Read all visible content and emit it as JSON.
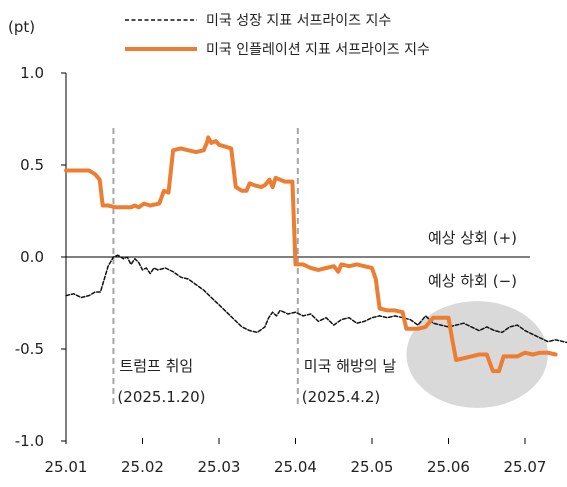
{
  "colors": {
    "growth": "#111111",
    "inflation": "#ED7D31",
    "axis": "#000000",
    "event_line": "#A6A6A6",
    "highlight_fill": "#D9D9D9"
  },
  "chart_data": {
    "type": "line",
    "y_unit": "(pt)",
    "ylim": [
      -1.0,
      1.0
    ],
    "y_ticks": [
      "1.0",
      "0.5",
      "0.0",
      "-0.5",
      "-1.0"
    ],
    "x_ticks": [
      "25.01",
      "25.02",
      "25.03",
      "25.04",
      "25.05",
      "25.06",
      "25.07"
    ],
    "legend_position": "top-right",
    "grid": false,
    "series": [
      {
        "name": "미국 성장 지표 서프라이즈 지수",
        "style": "dashed",
        "color": "#111111",
        "points": [
          [
            0.0,
            -0.21
          ],
          [
            0.1,
            -0.2
          ],
          [
            0.2,
            -0.22
          ],
          [
            0.3,
            -0.21
          ],
          [
            0.38,
            -0.19
          ],
          [
            0.45,
            -0.19
          ],
          [
            0.5,
            -0.12
          ],
          [
            0.55,
            -0.05
          ],
          [
            0.62,
            0.0
          ],
          [
            0.68,
            0.01
          ],
          [
            0.75,
            -0.01
          ],
          [
            0.8,
            0.0
          ],
          [
            0.85,
            -0.04
          ],
          [
            0.9,
            -0.01
          ],
          [
            0.95,
            -0.03
          ],
          [
            1.0,
            -0.07
          ],
          [
            1.05,
            -0.06
          ],
          [
            1.1,
            -0.09
          ],
          [
            1.15,
            -0.06
          ],
          [
            1.2,
            -0.07
          ],
          [
            1.3,
            -0.06
          ],
          [
            1.4,
            -0.08
          ],
          [
            1.5,
            -0.11
          ],
          [
            1.6,
            -0.12
          ],
          [
            1.7,
            -0.15
          ],
          [
            1.8,
            -0.18
          ],
          [
            1.9,
            -0.22
          ],
          [
            2.0,
            -0.26
          ],
          [
            2.1,
            -0.3
          ],
          [
            2.2,
            -0.34
          ],
          [
            2.3,
            -0.38
          ],
          [
            2.4,
            -0.4
          ],
          [
            2.5,
            -0.41
          ],
          [
            2.6,
            -0.38
          ],
          [
            2.65,
            -0.33
          ],
          [
            2.7,
            -0.3
          ],
          [
            2.75,
            -0.32
          ],
          [
            2.8,
            -0.29
          ],
          [
            2.9,
            -0.31
          ],
          [
            3.0,
            -0.3
          ],
          [
            3.1,
            -0.32
          ],
          [
            3.2,
            -0.31
          ],
          [
            3.3,
            -0.35
          ],
          [
            3.4,
            -0.33
          ],
          [
            3.5,
            -0.37
          ],
          [
            3.6,
            -0.34
          ],
          [
            3.7,
            -0.33
          ],
          [
            3.8,
            -0.36
          ],
          [
            3.9,
            -0.35
          ],
          [
            4.0,
            -0.33
          ],
          [
            4.1,
            -0.32
          ],
          [
            4.2,
            -0.33
          ],
          [
            4.3,
            -0.32
          ],
          [
            4.4,
            -0.33
          ],
          [
            4.5,
            -0.34
          ],
          [
            4.6,
            -0.37
          ],
          [
            4.7,
            -0.32
          ],
          [
            4.8,
            -0.36
          ],
          [
            4.9,
            -0.37
          ],
          [
            5.0,
            -0.38
          ],
          [
            5.1,
            -0.37
          ],
          [
            5.2,
            -0.36
          ],
          [
            5.3,
            -0.38
          ],
          [
            5.4,
            -0.4
          ],
          [
            5.5,
            -0.38
          ],
          [
            5.6,
            -0.4
          ],
          [
            5.7,
            -0.41
          ],
          [
            5.8,
            -0.38
          ],
          [
            5.9,
            -0.37
          ],
          [
            6.0,
            -0.4
          ],
          [
            6.1,
            -0.42
          ],
          [
            6.2,
            -0.44
          ],
          [
            6.3,
            -0.46
          ],
          [
            6.4,
            -0.45
          ],
          [
            6.5,
            -0.46
          ],
          [
            6.6,
            -0.47
          ],
          [
            6.7,
            -0.47
          ]
        ]
      },
      {
        "name": "미국 인플레이션 지표 서프라이즈 지수",
        "style": "solid",
        "color": "#ED7D31",
        "points": [
          [
            0.0,
            0.47
          ],
          [
            0.3,
            0.47
          ],
          [
            0.38,
            0.45
          ],
          [
            0.44,
            0.42
          ],
          [
            0.48,
            0.28
          ],
          [
            0.55,
            0.28
          ],
          [
            0.65,
            0.27
          ],
          [
            0.85,
            0.27
          ],
          [
            0.9,
            0.28
          ],
          [
            0.95,
            0.27
          ],
          [
            1.02,
            0.29
          ],
          [
            1.1,
            0.28
          ],
          [
            1.22,
            0.29
          ],
          [
            1.28,
            0.36
          ],
          [
            1.34,
            0.35
          ],
          [
            1.4,
            0.58
          ],
          [
            1.5,
            0.59
          ],
          [
            1.6,
            0.58
          ],
          [
            1.7,
            0.57
          ],
          [
            1.8,
            0.58
          ],
          [
            1.84,
            0.62
          ],
          [
            1.86,
            0.65
          ],
          [
            1.9,
            0.62
          ],
          [
            1.96,
            0.63
          ],
          [
            2.0,
            0.61
          ],
          [
            2.08,
            0.6
          ],
          [
            2.16,
            0.59
          ],
          [
            2.22,
            0.38
          ],
          [
            2.3,
            0.36
          ],
          [
            2.36,
            0.36
          ],
          [
            2.4,
            0.4
          ],
          [
            2.46,
            0.39
          ],
          [
            2.55,
            0.38
          ],
          [
            2.6,
            0.39
          ],
          [
            2.66,
            0.42
          ],
          [
            2.7,
            0.38
          ],
          [
            2.74,
            0.43
          ],
          [
            2.8,
            0.42
          ],
          [
            2.86,
            0.41
          ],
          [
            2.96,
            0.41
          ],
          [
            3.0,
            -0.04
          ],
          [
            3.1,
            -0.04
          ],
          [
            3.2,
            -0.06
          ],
          [
            3.3,
            -0.07
          ],
          [
            3.4,
            -0.06
          ],
          [
            3.5,
            -0.05
          ],
          [
            3.56,
            -0.08
          ],
          [
            3.6,
            -0.04
          ],
          [
            3.7,
            -0.05
          ],
          [
            3.8,
            -0.04
          ],
          [
            3.9,
            -0.05
          ],
          [
            4.0,
            -0.06
          ],
          [
            4.05,
            -0.12
          ],
          [
            4.1,
            -0.28
          ],
          [
            4.2,
            -0.29
          ],
          [
            4.3,
            -0.29
          ],
          [
            4.4,
            -0.3
          ],
          [
            4.45,
            -0.39
          ],
          [
            4.6,
            -0.39
          ],
          [
            4.7,
            -0.38
          ],
          [
            4.8,
            -0.33
          ],
          [
            4.9,
            -0.33
          ],
          [
            5.0,
            -0.33
          ],
          [
            5.05,
            -0.45
          ],
          [
            5.1,
            -0.56
          ],
          [
            5.3,
            -0.54
          ],
          [
            5.4,
            -0.53
          ],
          [
            5.5,
            -0.53
          ],
          [
            5.58,
            -0.62
          ],
          [
            5.66,
            -0.62
          ],
          [
            5.72,
            -0.54
          ],
          [
            5.8,
            -0.54
          ],
          [
            5.9,
            -0.54
          ],
          [
            6.0,
            -0.52
          ],
          [
            6.1,
            -0.53
          ],
          [
            6.2,
            -0.52
          ],
          [
            6.3,
            -0.52
          ],
          [
            6.4,
            -0.53
          ]
        ]
      }
    ],
    "event_lines": [
      {
        "x": 0.62,
        "label": "트럼프 취임",
        "date_label": "(2025.1.20)"
      },
      {
        "x": 3.03,
        "label": "미국 해방의 날",
        "date_label": "(2025.4.2)"
      }
    ],
    "regions": [
      {
        "label_above": "예상 상회 (+)",
        "label_below": "예상 하회 (−)"
      }
    ],
    "highlight": {
      "x_range": [
        4.45,
        6.3
      ],
      "y_range": [
        -0.24,
        -0.82
      ]
    }
  }
}
